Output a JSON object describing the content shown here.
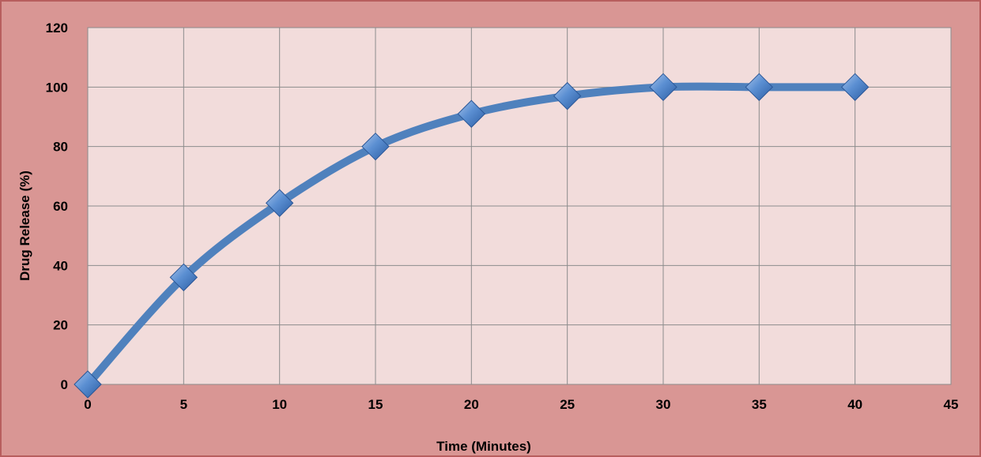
{
  "chart_data": {
    "type": "scatter",
    "mode": "lines+markers",
    "title": "",
    "xlabel": "Time (Minutes)",
    "ylabel": "Drug Release (%)",
    "xlim": [
      0,
      45
    ],
    "ylim": [
      0,
      120
    ],
    "x_ticks": [
      0,
      5,
      10,
      15,
      20,
      25,
      30,
      35,
      40,
      45
    ],
    "y_ticks": [
      0,
      20,
      40,
      60,
      80,
      100,
      120
    ],
    "grid": true,
    "legend": "none",
    "series": [
      {
        "x": [
          0,
          5,
          10,
          15,
          20,
          25,
          30,
          35,
          40
        ],
        "y": [
          0,
          36,
          61,
          80,
          91,
          97,
          100,
          100,
          100
        ],
        "line_color": "#4f81bd",
        "marker": "diamond",
        "smooth": true
      }
    ],
    "colors": {
      "chart_area": "#d99694",
      "plot_area": "#f2dcdb",
      "gridline": "#8c8c8c",
      "frame_border": "#b85e5e"
    }
  }
}
